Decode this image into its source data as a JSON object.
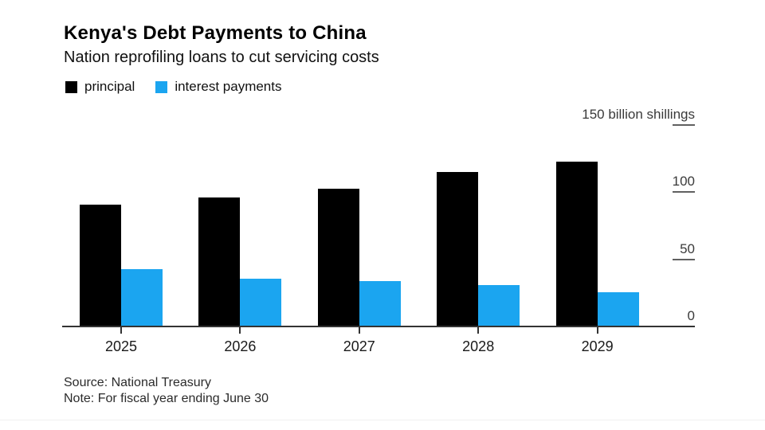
{
  "figure": {
    "title": "Kenya's Debt Payments to China",
    "subtitle": "Nation reprofiling loans to cut servicing costs",
    "source": "Source: National Treasury",
    "note": "Note: For fiscal year ending June 30"
  },
  "chart_data": {
    "type": "bar",
    "title": "Kenya's Debt Payments to China",
    "subtitle": "Nation reprofiling loans to cut servicing costs",
    "categories": [
      "2025",
      "2026",
      "2027",
      "2028",
      "2029"
    ],
    "series": [
      {
        "name": "principal",
        "color": "#000000",
        "values": [
          90,
          95,
          102,
          114,
          122
        ]
      },
      {
        "name": "interest payments",
        "color": "#1BA5F0",
        "values": [
          42,
          35,
          33,
          30,
          25
        ]
      }
    ],
    "unit": "billion shillings",
    "ylim": [
      0,
      150
    ],
    "yticks": [
      {
        "value": 0,
        "label": "0",
        "dash": false
      },
      {
        "value": 50,
        "label": "50",
        "dash": true
      },
      {
        "value": 100,
        "label": "100",
        "dash": true
      },
      {
        "value": 150,
        "label": "150 billion shillings",
        "dash": true
      }
    ],
    "grid": false,
    "legend_position": "top-left",
    "axis_side": "right"
  }
}
